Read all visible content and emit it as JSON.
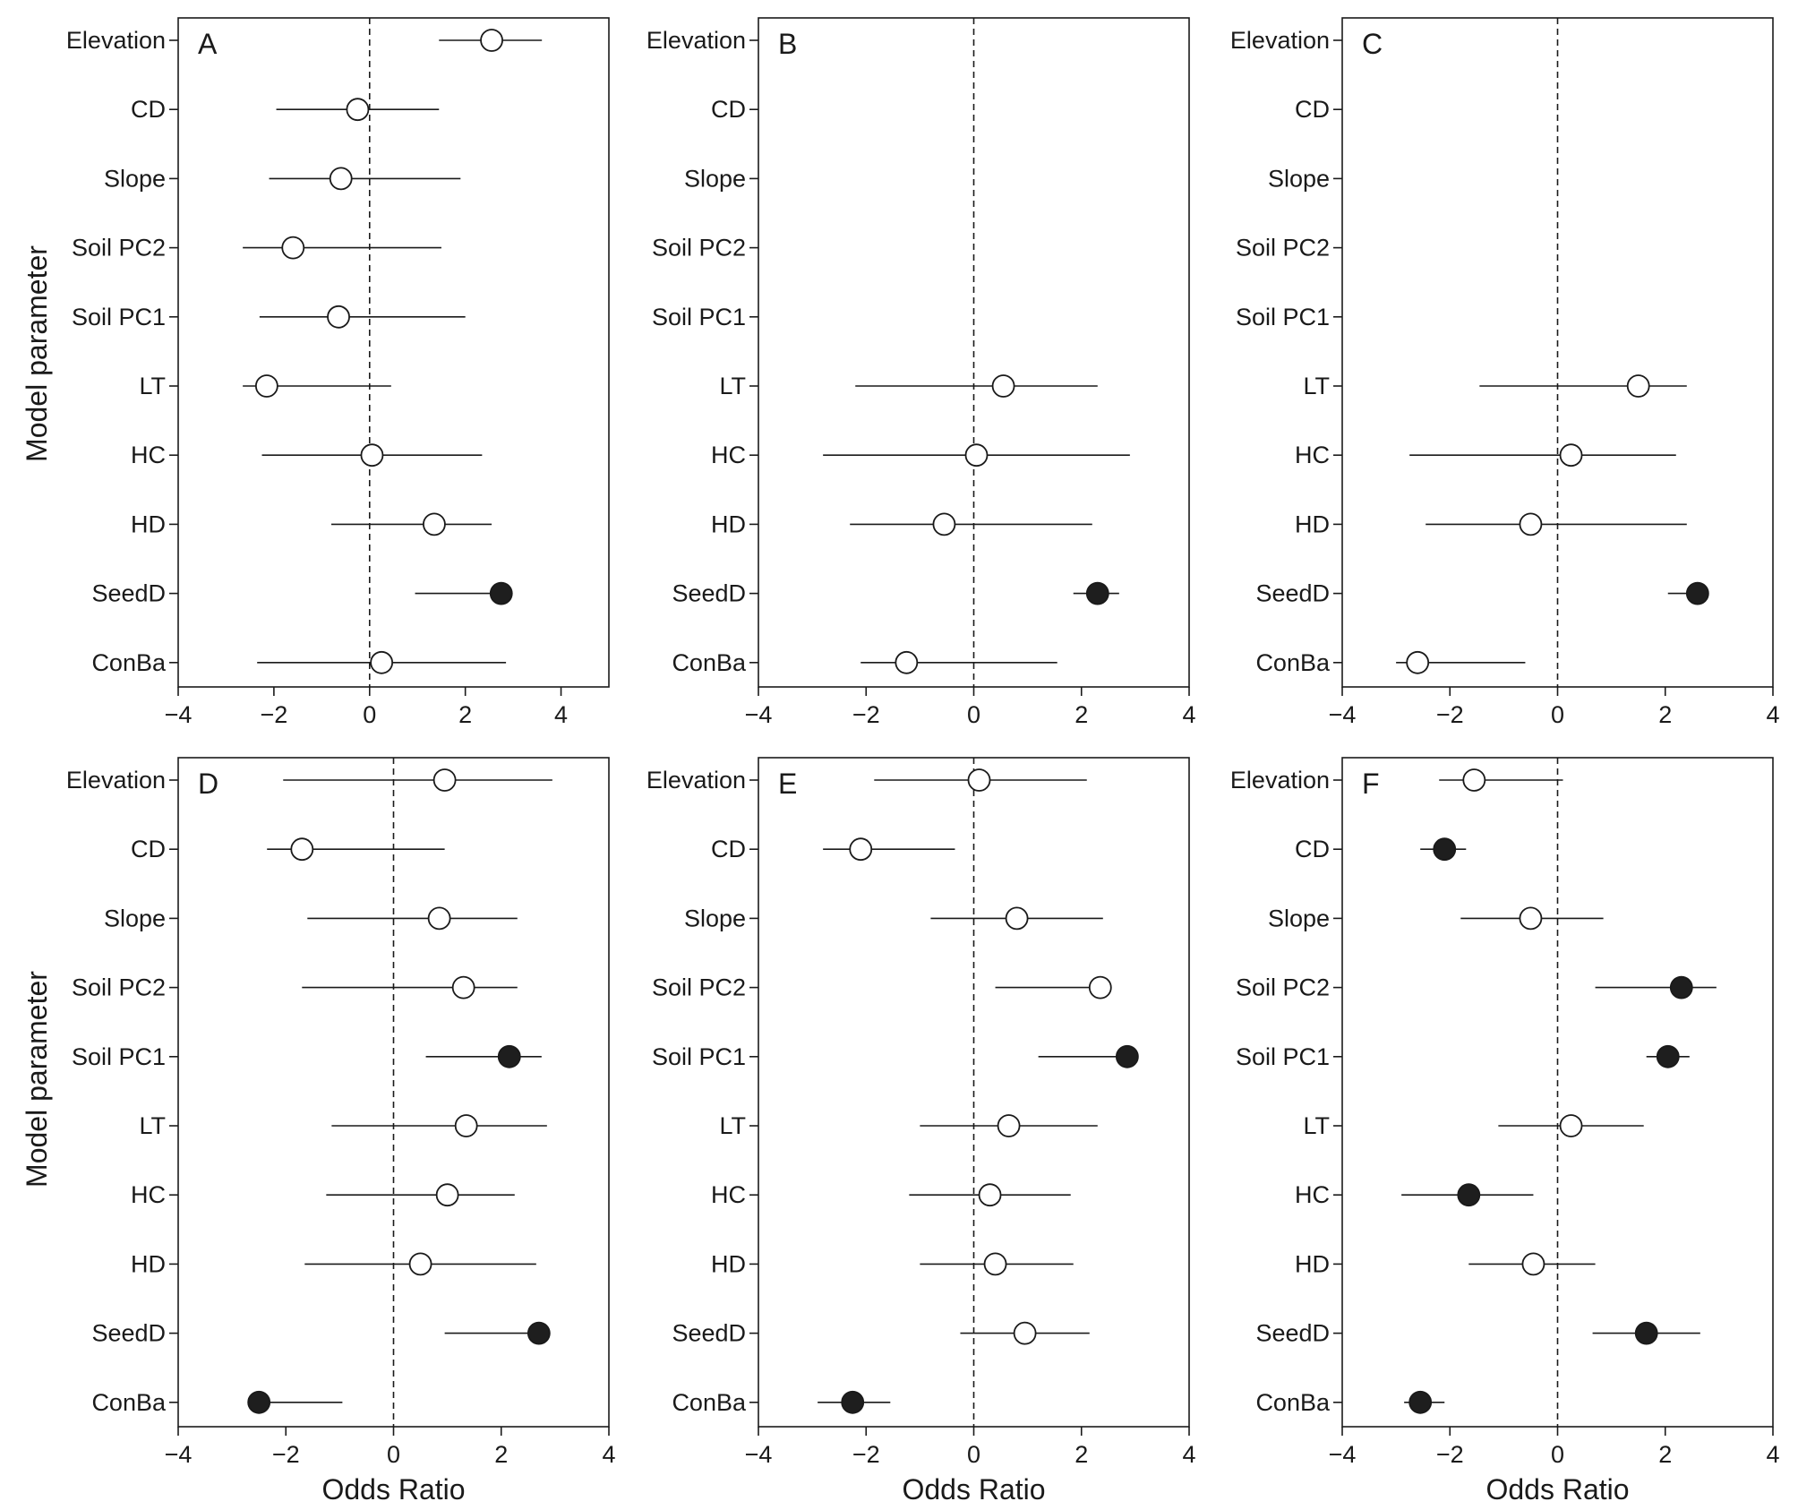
{
  "figure": {
    "y_axis_title": "Model parameter",
    "x_axis_title": "Odds Ratio"
  },
  "chart_data": [
    {
      "type": "forest",
      "panel": "A",
      "title": "A",
      "xlabel": "",
      "ylabel": "Model parameter",
      "xlim": [
        -4,
        5
      ],
      "xticks": [
        -4,
        -2,
        0,
        2,
        4
      ],
      "reference_line": 0,
      "categories": [
        "Elevation",
        "CD",
        "Slope",
        "Soil PC2",
        "Soil PC1",
        "LT",
        "HC",
        "HD",
        "SeedD",
        "ConBa"
      ],
      "points": [
        {
          "label": "Elevation",
          "estimate": 2.55,
          "lower": 1.45,
          "upper": 3.6,
          "significant": false
        },
        {
          "label": "CD",
          "estimate": -0.25,
          "lower": -1.95,
          "upper": 1.45,
          "significant": false
        },
        {
          "label": "Slope",
          "estimate": -0.6,
          "lower": -2.1,
          "upper": 1.9,
          "significant": false
        },
        {
          "label": "Soil PC2",
          "estimate": -1.6,
          "lower": -2.65,
          "upper": 1.5,
          "significant": false
        },
        {
          "label": "Soil PC1",
          "estimate": -0.65,
          "lower": -2.3,
          "upper": 2.0,
          "significant": false
        },
        {
          "label": "LT",
          "estimate": -2.15,
          "lower": -2.65,
          "upper": 0.45,
          "significant": false
        },
        {
          "label": "HC",
          "estimate": 0.05,
          "lower": -2.25,
          "upper": 2.35,
          "significant": false
        },
        {
          "label": "HD",
          "estimate": 1.35,
          "lower": -0.8,
          "upper": 2.55,
          "significant": false
        },
        {
          "label": "SeedD",
          "estimate": 2.75,
          "lower": 0.95,
          "upper": 2.75,
          "significant": true
        },
        {
          "label": "ConBa",
          "estimate": 0.25,
          "lower": -2.35,
          "upper": 2.85,
          "significant": false
        }
      ]
    },
    {
      "type": "forest",
      "panel": "B",
      "title": "B",
      "xlabel": "",
      "ylabel": "",
      "xlim": [
        -4,
        4
      ],
      "xticks": [
        -4,
        -2,
        0,
        2,
        4
      ],
      "reference_line": 0,
      "categories": [
        "Elevation",
        "CD",
        "Slope",
        "Soil PC2",
        "Soil PC1",
        "LT",
        "HC",
        "HD",
        "SeedD",
        "ConBa"
      ],
      "points": [
        {
          "label": "LT",
          "estimate": 0.55,
          "lower": -2.2,
          "upper": 2.3,
          "significant": false
        },
        {
          "label": "HC",
          "estimate": 0.05,
          "lower": -2.8,
          "upper": 2.9,
          "significant": false
        },
        {
          "label": "HD",
          "estimate": -0.55,
          "lower": -2.3,
          "upper": 2.2,
          "significant": false
        },
        {
          "label": "SeedD",
          "estimate": 2.3,
          "lower": 1.85,
          "upper": 2.7,
          "significant": true
        },
        {
          "label": "ConBa",
          "estimate": -1.25,
          "lower": -2.1,
          "upper": 1.55,
          "significant": false
        }
      ]
    },
    {
      "type": "forest",
      "panel": "C",
      "title": "C",
      "xlabel": "",
      "ylabel": "",
      "xlim": [
        -4,
        4
      ],
      "xticks": [
        -4,
        -2,
        0,
        2,
        4
      ],
      "reference_line": 0,
      "categories": [
        "Elevation",
        "CD",
        "Slope",
        "Soil PC2",
        "Soil PC1",
        "LT",
        "HC",
        "HD",
        "SeedD",
        "ConBa"
      ],
      "points": [
        {
          "label": "LT",
          "estimate": 1.5,
          "lower": -1.45,
          "upper": 2.4,
          "significant": false
        },
        {
          "label": "HC",
          "estimate": 0.25,
          "lower": -2.75,
          "upper": 2.2,
          "significant": false
        },
        {
          "label": "HD",
          "estimate": -0.5,
          "lower": -2.45,
          "upper": 2.4,
          "significant": false
        },
        {
          "label": "SeedD",
          "estimate": 2.6,
          "lower": 2.05,
          "upper": 2.6,
          "significant": true
        },
        {
          "label": "ConBa",
          "estimate": -2.6,
          "lower": -3.0,
          "upper": -0.6,
          "significant": false
        }
      ]
    },
    {
      "type": "forest",
      "panel": "D",
      "title": "D",
      "xlabel": "Odds Ratio",
      "ylabel": "Model parameter",
      "xlim": [
        -4,
        4
      ],
      "xticks": [
        -4,
        -2,
        0,
        2,
        4
      ],
      "reference_line": 0,
      "categories": [
        "Elevation",
        "CD",
        "Slope",
        "Soil PC2",
        "Soil PC1",
        "LT",
        "HC",
        "HD",
        "SeedD",
        "ConBa"
      ],
      "points": [
        {
          "label": "Elevation",
          "estimate": 0.95,
          "lower": -2.05,
          "upper": 2.95,
          "significant": false
        },
        {
          "label": "CD",
          "estimate": -1.7,
          "lower": -2.35,
          "upper": 0.95,
          "significant": false
        },
        {
          "label": "Slope",
          "estimate": 0.85,
          "lower": -1.6,
          "upper": 2.3,
          "significant": false
        },
        {
          "label": "Soil PC2",
          "estimate": 1.3,
          "lower": -1.7,
          "upper": 2.3,
          "significant": false
        },
        {
          "label": "Soil PC1",
          "estimate": 2.15,
          "lower": 0.6,
          "upper": 2.75,
          "significant": true
        },
        {
          "label": "LT",
          "estimate": 1.35,
          "lower": -1.15,
          "upper": 2.85,
          "significant": false
        },
        {
          "label": "HC",
          "estimate": 1.0,
          "lower": -1.25,
          "upper": 2.25,
          "significant": false
        },
        {
          "label": "HD",
          "estimate": 0.5,
          "lower": -1.65,
          "upper": 2.65,
          "significant": false
        },
        {
          "label": "SeedD",
          "estimate": 2.7,
          "lower": 0.95,
          "upper": 2.7,
          "significant": true
        },
        {
          "label": "ConBa",
          "estimate": -2.5,
          "lower": -2.5,
          "upper": -0.95,
          "significant": true
        }
      ]
    },
    {
      "type": "forest",
      "panel": "E",
      "title": "E",
      "xlabel": "Odds Ratio",
      "ylabel": "",
      "xlim": [
        -4,
        4
      ],
      "xticks": [
        -4,
        -2,
        0,
        2,
        4
      ],
      "reference_line": 0,
      "categories": [
        "Elevation",
        "CD",
        "Slope",
        "Soil PC2",
        "Soil PC1",
        "LT",
        "HC",
        "HD",
        "SeedD",
        "ConBa"
      ],
      "points": [
        {
          "label": "Elevation",
          "estimate": 0.1,
          "lower": -1.85,
          "upper": 2.1,
          "significant": false
        },
        {
          "label": "CD",
          "estimate": -2.1,
          "lower": -2.8,
          "upper": -0.35,
          "significant": false
        },
        {
          "label": "Slope",
          "estimate": 0.8,
          "lower": -0.8,
          "upper": 2.4,
          "significant": false
        },
        {
          "label": "Soil PC2",
          "estimate": 2.35,
          "lower": 0.4,
          "upper": 2.35,
          "significant": false
        },
        {
          "label": "Soil PC1",
          "estimate": 2.85,
          "lower": 1.2,
          "upper": 2.85,
          "significant": true
        },
        {
          "label": "LT",
          "estimate": 0.65,
          "lower": -1.0,
          "upper": 2.3,
          "significant": false
        },
        {
          "label": "HC",
          "estimate": 0.3,
          "lower": -1.2,
          "upper": 1.8,
          "significant": false
        },
        {
          "label": "HD",
          "estimate": 0.4,
          "lower": -1.0,
          "upper": 1.85,
          "significant": false
        },
        {
          "label": "SeedD",
          "estimate": 0.95,
          "lower": -0.25,
          "upper": 2.15,
          "significant": false
        },
        {
          "label": "ConBa",
          "estimate": -2.25,
          "lower": -2.9,
          "upper": -1.55,
          "significant": true
        }
      ]
    },
    {
      "type": "forest",
      "panel": "F",
      "title": "F",
      "xlabel": "Odds Ratio",
      "ylabel": "",
      "xlim": [
        -4,
        4
      ],
      "xticks": [
        -4,
        -2,
        0,
        2,
        4
      ],
      "reference_line": 0,
      "categories": [
        "Elevation",
        "CD",
        "Slope",
        "Soil PC2",
        "Soil PC1",
        "LT",
        "HC",
        "HD",
        "SeedD",
        "ConBa"
      ],
      "points": [
        {
          "label": "Elevation",
          "estimate": -1.55,
          "lower": -2.2,
          "upper": 0.1,
          "significant": false
        },
        {
          "label": "CD",
          "estimate": -2.1,
          "lower": -2.55,
          "upper": -1.7,
          "significant": true
        },
        {
          "label": "Slope",
          "estimate": -0.5,
          "lower": -1.8,
          "upper": 0.85,
          "significant": false
        },
        {
          "label": "Soil PC2",
          "estimate": 2.3,
          "lower": 0.7,
          "upper": 2.95,
          "significant": true
        },
        {
          "label": "Soil PC1",
          "estimate": 2.05,
          "lower": 1.65,
          "upper": 2.45,
          "significant": true
        },
        {
          "label": "LT",
          "estimate": 0.25,
          "lower": -1.1,
          "upper": 1.6,
          "significant": false
        },
        {
          "label": "HC",
          "estimate": -1.65,
          "lower": -2.9,
          "upper": -0.45,
          "significant": true
        },
        {
          "label": "HD",
          "estimate": -0.45,
          "lower": -1.65,
          "upper": 0.7,
          "significant": false
        },
        {
          "label": "SeedD",
          "estimate": 1.65,
          "lower": 0.65,
          "upper": 2.65,
          "significant": true
        },
        {
          "label": "ConBa",
          "estimate": -2.55,
          "lower": -2.85,
          "upper": -2.1,
          "significant": true
        }
      ]
    }
  ]
}
